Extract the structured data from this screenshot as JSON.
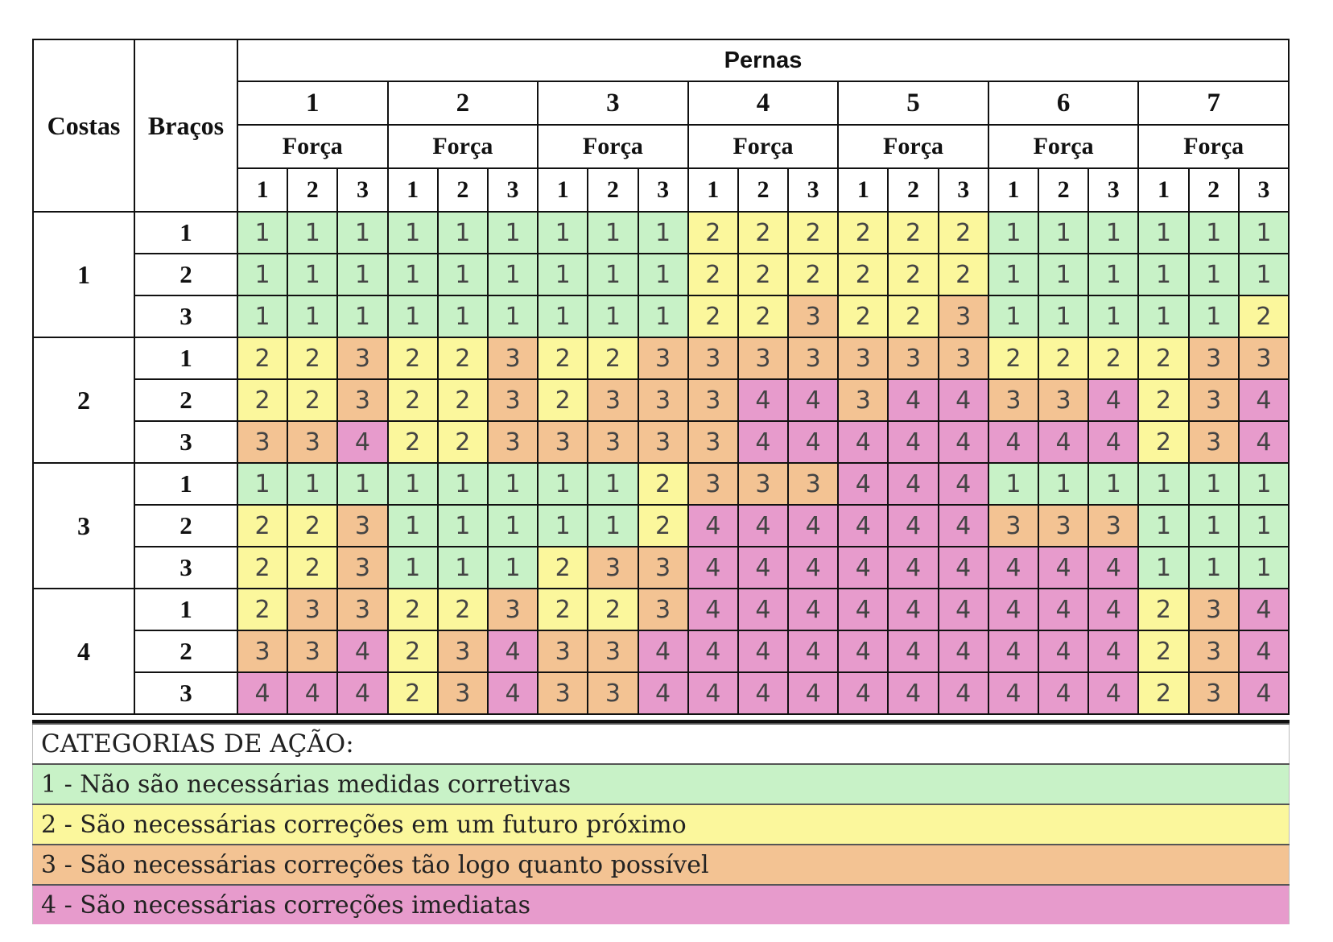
{
  "header": {
    "costas": "Costas",
    "bracos": "Braços",
    "pernas": "Pernas",
    "forca": "Força",
    "pernas_values": [
      "1",
      "2",
      "3",
      "4",
      "5",
      "6",
      "7"
    ],
    "forca_values": [
      "1",
      "2",
      "3"
    ]
  },
  "groups": [
    {
      "costas": "1",
      "rows": [
        {
          "bracos": "1",
          "values": [
            1,
            1,
            1,
            1,
            1,
            1,
            1,
            1,
            1,
            2,
            2,
            2,
            2,
            2,
            2,
            1,
            1,
            1,
            1,
            1,
            1
          ]
        },
        {
          "bracos": "2",
          "values": [
            1,
            1,
            1,
            1,
            1,
            1,
            1,
            1,
            1,
            2,
            2,
            2,
            2,
            2,
            2,
            1,
            1,
            1,
            1,
            1,
            1
          ]
        },
        {
          "bracos": "3",
          "values": [
            1,
            1,
            1,
            1,
            1,
            1,
            1,
            1,
            1,
            2,
            2,
            3,
            2,
            2,
            3,
            1,
            1,
            1,
            1,
            1,
            2
          ]
        }
      ]
    },
    {
      "costas": "2",
      "rows": [
        {
          "bracos": "1",
          "values": [
            2,
            2,
            3,
            2,
            2,
            3,
            2,
            2,
            3,
            3,
            3,
            3,
            3,
            3,
            3,
            2,
            2,
            2,
            2,
            3,
            3
          ]
        },
        {
          "bracos": "2",
          "values": [
            2,
            2,
            3,
            2,
            2,
            3,
            2,
            3,
            3,
            3,
            4,
            4,
            3,
            4,
            4,
            3,
            3,
            4,
            2,
            3,
            4
          ]
        },
        {
          "bracos": "3",
          "values": [
            3,
            3,
            4,
            2,
            2,
            3,
            3,
            3,
            3,
            3,
            4,
            4,
            4,
            4,
            4,
            4,
            4,
            4,
            2,
            3,
            4
          ]
        }
      ]
    },
    {
      "costas": "3",
      "rows": [
        {
          "bracos": "1",
          "values": [
            1,
            1,
            1,
            1,
            1,
            1,
            1,
            1,
            2,
            3,
            3,
            3,
            4,
            4,
            4,
            1,
            1,
            1,
            1,
            1,
            1
          ]
        },
        {
          "bracos": "2",
          "values": [
            2,
            2,
            3,
            1,
            1,
            1,
            1,
            1,
            2,
            4,
            4,
            4,
            4,
            4,
            4,
            3,
            3,
            3,
            1,
            1,
            1
          ]
        },
        {
          "bracos": "3",
          "values": [
            2,
            2,
            3,
            1,
            1,
            1,
            2,
            3,
            3,
            4,
            4,
            4,
            4,
            4,
            4,
            4,
            4,
            4,
            1,
            1,
            1
          ]
        }
      ]
    },
    {
      "costas": "4",
      "rows": [
        {
          "bracos": "1",
          "values": [
            2,
            3,
            3,
            2,
            2,
            3,
            2,
            2,
            3,
            4,
            4,
            4,
            4,
            4,
            4,
            4,
            4,
            4,
            2,
            3,
            4
          ]
        },
        {
          "bracos": "2",
          "values": [
            3,
            3,
            4,
            2,
            3,
            4,
            3,
            3,
            4,
            4,
            4,
            4,
            4,
            4,
            4,
            4,
            4,
            4,
            2,
            3,
            4
          ]
        },
        {
          "bracos": "3",
          "values": [
            4,
            4,
            4,
            2,
            3,
            4,
            3,
            3,
            4,
            4,
            4,
            4,
            4,
            4,
            4,
            4,
            4,
            4,
            2,
            3,
            4
          ]
        }
      ]
    }
  ],
  "legend": {
    "title": "CATEGORIAS DE AÇÃO:",
    "items": [
      {
        "text": "1 - Não são necessárias medidas corretivas",
        "color": "#c8f2c7"
      },
      {
        "text": "2 - São necessárias correções em um futuro próximo",
        "color": "#fbf79c"
      },
      {
        "text": "3 - São necessárias correções tão logo quanto possível",
        "color": "#f3c393"
      },
      {
        "text": "4 - São necessárias correções imediatas",
        "color": "#e79bcc"
      }
    ]
  },
  "colors": {
    "cat1": "#c8f2c7",
    "cat2": "#fbf79c",
    "cat3": "#f3c393",
    "cat4": "#e79bcc"
  }
}
